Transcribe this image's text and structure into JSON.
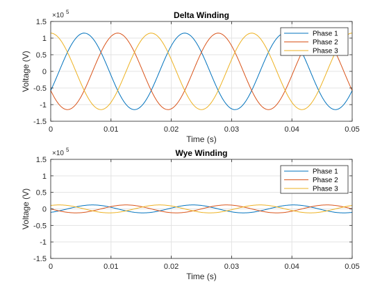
{
  "chart_data": [
    {
      "type": "line",
      "title": "Delta Winding",
      "xlabel": "Time (s)",
      "ylabel": "Voltage (V)",
      "xlim": [
        0,
        0.05
      ],
      "ylim": [
        -150000,
        150000
      ],
      "y_exponent_label": "×10",
      "y_exponent_power": "5",
      "x_ticks": [
        "0",
        "0.01",
        "0.02",
        "0.03",
        "0.04",
        "0.05"
      ],
      "y_ticks": [
        "-1.5",
        "-1",
        "-0.5",
        "0",
        "0.5",
        "1",
        "1.5"
      ],
      "grid": true,
      "legend": "top-right",
      "wave": {
        "amplitude": 115000,
        "frequency_hz": 60,
        "phase_deg": [
          -30,
          -150,
          90
        ]
      },
      "series": [
        {
          "name": "Phase 1",
          "color": "#0072BD"
        },
        {
          "name": "Phase 2",
          "color": "#D95319"
        },
        {
          "name": "Phase 3",
          "color": "#EDB120"
        }
      ]
    },
    {
      "type": "line",
      "title": "Wye Winding",
      "xlabel": "Time (s)",
      "ylabel": "Voltage (V)",
      "xlim": [
        0,
        0.05
      ],
      "ylim": [
        -150000,
        150000
      ],
      "y_exponent_label": "×10",
      "y_exponent_power": "5",
      "x_ticks": [
        "0",
        "0.01",
        "0.02",
        "0.03",
        "0.04",
        "0.05"
      ],
      "y_ticks": [
        "-1.5",
        "-1",
        "-0.5",
        "0",
        "0.5",
        "1",
        "1.5"
      ],
      "grid": true,
      "legend": "top-right",
      "wave": {
        "amplitude": 12000,
        "frequency_hz": 60,
        "phase_deg": [
          -60,
          180,
          60
        ]
      },
      "series": [
        {
          "name": "Phase 1",
          "color": "#0072BD"
        },
        {
          "name": "Phase 2",
          "color": "#D95319"
        },
        {
          "name": "Phase 3",
          "color": "#EDB120"
        }
      ]
    }
  ]
}
